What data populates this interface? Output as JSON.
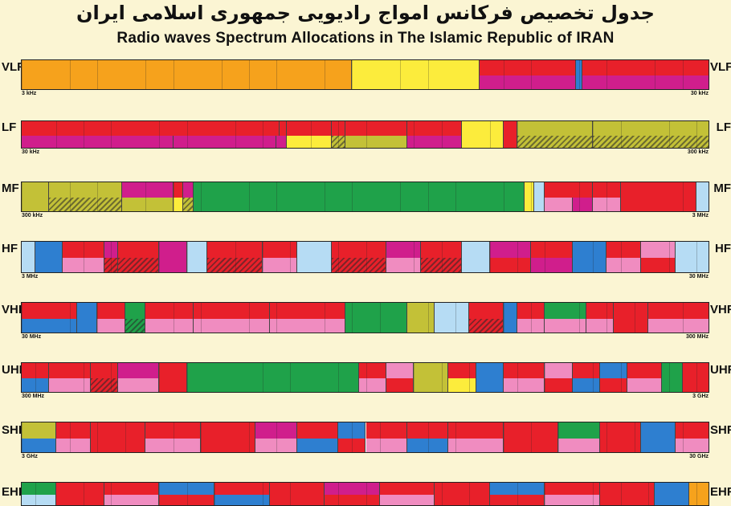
{
  "header": {
    "title_fa": "جدول تخصیص فرکانس امواج رادیویی جمهوری اسلامی ایران",
    "title_en": "Radio waves Spectrum Allocations in The Islamic Republic of IRAN"
  },
  "chart_data": {
    "type": "bar",
    "title": "Radio waves Spectrum Allocations in The Islamic Republic of IRAN",
    "bands": [
      {
        "name": "VLF",
        "start": "3 kHz",
        "end": "30 kHz"
      },
      {
        "name": "LF",
        "start": "30 kHz",
        "end": "300 kHz"
      },
      {
        "name": "MF",
        "start": "300 kHz",
        "end": "3 MHz"
      },
      {
        "name": "HF",
        "start": "3 MHz",
        "end": "30 MHz"
      },
      {
        "name": "VHF",
        "start": "30 MHz",
        "end": "300 MHz"
      },
      {
        "name": "UHF",
        "start": "300 MHz",
        "end": "3 GHz"
      },
      {
        "name": "SHF",
        "start": "3 GHz",
        "end": "30 GHz"
      },
      {
        "name": "EHF",
        "start": "",
        "end": ""
      }
    ]
  },
  "colors": {
    "red": "#e8202a",
    "magenta": "#d01e8c",
    "yellow": "#fcec3c",
    "olive": "#c3c137",
    "green": "#1fa24a",
    "blue": "#2e7fd0",
    "lightblue": "#b6dcf4",
    "pink": "#f08cc0",
    "orange": "#f6a21c",
    "white": "#ffffff",
    "purple": "#8b3aa0",
    "gray": "#9a9a9a"
  }
}
